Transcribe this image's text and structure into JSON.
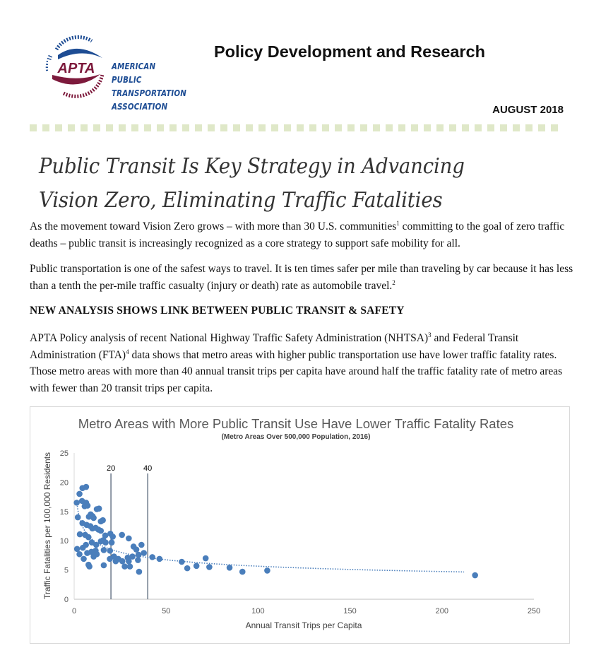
{
  "header": {
    "logo_text": "APTA",
    "org_name": [
      "AMERICAN",
      "PUBLIC",
      "TRANSPORTATION",
      "ASSOCIATION"
    ],
    "publication": "Policy Development and Research",
    "date": "AUGUST 2018",
    "colors": {
      "logo_blue": "#1e4d94",
      "logo_maroon": "#7d1a3c",
      "divider_dots": "#dfe8c8"
    }
  },
  "title": "Public Transit Is Key Strategy in Advancing Vision Zero, Eliminating Traffic Fatalities",
  "paragraphs": {
    "p1_a": "As the movement toward Vision Zero grows – with more than 30 U.S. communities",
    "p1_sup": "1",
    "p1_b": " committing to the goal of zero traffic deaths – public transit is increasingly recognized as a core strategy to support safe mobility for all.",
    "p2_a": "Public transportation is one of the safest ways to travel. It is ten times safer per mile than traveling by car because it has less than a tenth the per-mile traffic casualty (injury or death) rate as automobile travel.",
    "p2_sup": "2",
    "heading": "NEW ANALYSIS SHOWS LINK BETWEEN PUBLIC TRANSIT & SAFETY",
    "p3_a": "APTA Policy analysis of recent National Highway Traffic Safety Administration (NHTSA)",
    "p3_sup1": "3",
    "p3_b": " and Federal Transit Administration (FTA)",
    "p3_sup2": "4",
    "p3_c": " data shows that metro areas with higher public transportation use have lower traffic fatality rates. Those metro areas with more than 40 annual transit trips per capita have around half the traffic fatality rate of metro areas with fewer than 20 transit trips per capita."
  },
  "chart_data": {
    "type": "scatter",
    "title": "Metro Areas with More Public Transit Use Have Lower Traffic Fatality Rates",
    "subtitle": "(Metro Areas Over 500,000 Population, 2016)",
    "xlabel": "Annual Transit Trips per Capita",
    "ylabel": "Traffic Fatalities per 100,000 Residents",
    "xlim": [
      0,
      250
    ],
    "ylim": [
      0,
      25
    ],
    "xticks": [
      "0",
      "50",
      "100",
      "150",
      "200",
      "250"
    ],
    "yticks": [
      "0",
      "5",
      "10",
      "15",
      "20",
      "25"
    ],
    "grid": false,
    "legend": "none",
    "marker_color": "#4a7ebb",
    "trendline": {
      "type": "power",
      "style": "dotted"
    },
    "reference_lines": [
      {
        "x": 20,
        "label": "20"
      },
      {
        "x": 40,
        "label": "40"
      }
    ],
    "points": [
      [
        1.4,
        16.5
      ],
      [
        2.9,
        18
      ],
      [
        4.5,
        19
      ],
      [
        6.5,
        19.2
      ],
      [
        2,
        14
      ],
      [
        4.3,
        16.8
      ],
      [
        6.5,
        16.5
      ],
      [
        5.7,
        15.9
      ],
      [
        7.3,
        16
      ],
      [
        4.5,
        13
      ],
      [
        6.8,
        12.7
      ],
      [
        8.8,
        12.5
      ],
      [
        9.9,
        12.1
      ],
      [
        11.7,
        12.2
      ],
      [
        13.2,
        11.9
      ],
      [
        14.5,
        11.7
      ],
      [
        8,
        14.1
      ],
      [
        9,
        14.5
      ],
      [
        10,
        14.2
      ],
      [
        10.6,
        13.9
      ],
      [
        12.3,
        15.4
      ],
      [
        13.5,
        15.5
      ],
      [
        14.5,
        13.3
      ],
      [
        15.6,
        13.5
      ],
      [
        3.1,
        11.1
      ],
      [
        6,
        11
      ],
      [
        7.8,
        10.6
      ],
      [
        16.9,
        10.9
      ],
      [
        19.7,
        11.2
      ],
      [
        21,
        10.7
      ],
      [
        20.4,
        9.7
      ],
      [
        15.8,
        10.1
      ],
      [
        17.1,
        9.7
      ],
      [
        14.5,
        9.9
      ],
      [
        12,
        9.3
      ],
      [
        9.6,
        9.7
      ],
      [
        6.4,
        9.3
      ],
      [
        4.7,
        8.8
      ],
      [
        1.6,
        8.6
      ],
      [
        2.9,
        7.7
      ],
      [
        5.2,
        6.9
      ],
      [
        7.8,
        5.9
      ],
      [
        8.3,
        5.6
      ],
      [
        7.1,
        7.9
      ],
      [
        9.4,
        8.1
      ],
      [
        10.6,
        7.3
      ],
      [
        12.3,
        7.7
      ],
      [
        11.7,
        8.3
      ],
      [
        16.1,
        8.4
      ],
      [
        16.1,
        5.8
      ],
      [
        19.5,
        8.3
      ],
      [
        19.4,
        6.9
      ],
      [
        21.7,
        7.3
      ],
      [
        22.6,
        6.5
      ],
      [
        24,
        6.9
      ],
      [
        26.2,
        6.5
      ],
      [
        27.5,
        5.6
      ],
      [
        26,
        11
      ],
      [
        29.7,
        10.4
      ],
      [
        29.1,
        7.1
      ],
      [
        29.7,
        6.5
      ],
      [
        30.3,
        5.6
      ],
      [
        31.7,
        7.3
      ],
      [
        32.3,
        9
      ],
      [
        33.8,
        8.5
      ],
      [
        36.6,
        9.3
      ],
      [
        35,
        7.6
      ],
      [
        34.7,
        6.7
      ],
      [
        35.3,
        4.7
      ],
      [
        37.9,
        7.9
      ],
      [
        42.5,
        7.2
      ],
      [
        46.4,
        6.9
      ],
      [
        58.5,
        6.4
      ],
      [
        61.5,
        5.3
      ],
      [
        66.5,
        5.7
      ],
      [
        71.5,
        7
      ],
      [
        73.5,
        5.5
      ],
      [
        84.5,
        5.4
      ],
      [
        91.5,
        4.7
      ],
      [
        105,
        4.9
      ],
      [
        218,
        4.1
      ]
    ]
  }
}
